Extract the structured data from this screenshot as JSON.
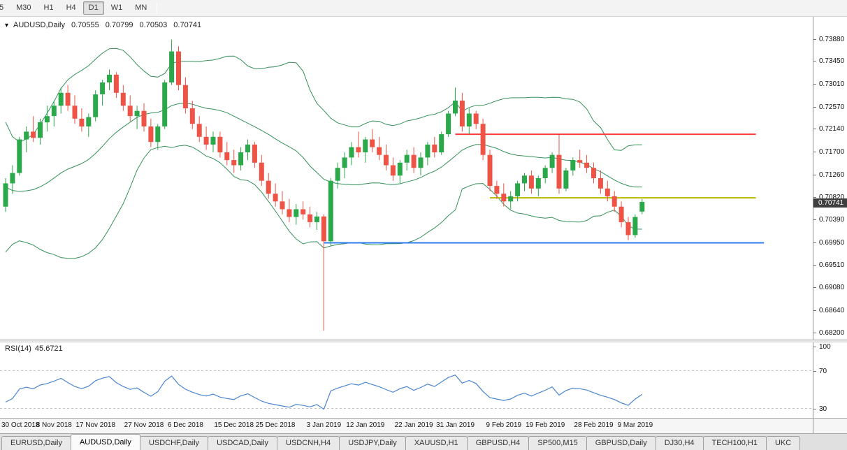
{
  "colors": {
    "bull": "#2aa84a",
    "bear": "#ee5345",
    "bollinger": "#35915a",
    "rsi_line": "#4a85d1",
    "rsi_level": "#c4c4c4",
    "badge_bg": "#3f3f3f",
    "red_line": "#fb3a3a",
    "yellow_line": "#b9ba00",
    "blue_line": "#2f7df0"
  },
  "toolbar": {
    "timeframes": [
      {
        "label": "5",
        "selected": false
      },
      {
        "label": "M30",
        "selected": false
      },
      {
        "label": "H1",
        "selected": false
      },
      {
        "label": "H4",
        "selected": false
      },
      {
        "label": "D1",
        "selected": true
      },
      {
        "label": "W1",
        "selected": false
      },
      {
        "label": "MN",
        "selected": false
      }
    ]
  },
  "chart": {
    "title": {
      "symbol": "AUDUSD,Daily",
      "open": "0.70555",
      "high": "0.70799",
      "low": "0.70503",
      "close": "0.70741"
    },
    "price_scale": {
      "labels": [
        "0.73880",
        "0.73450",
        "0.73010",
        "0.72570",
        "0.72140",
        "0.71700",
        "0.71260",
        "0.70820",
        "0.70390",
        "0.69950",
        "0.69510",
        "0.69080",
        "0.68640",
        "0.68200"
      ],
      "current": "0.70741"
    }
  },
  "rsi": {
    "label": "RSI(14)",
    "value": "45.6721",
    "scale_labels": [
      "100",
      "70",
      "30"
    ]
  },
  "tabs": [
    {
      "label": "EURUSD,Daily",
      "active": false
    },
    {
      "label": "AUDUSD,Daily",
      "active": true
    },
    {
      "label": "USDCHF,Daily",
      "active": false
    },
    {
      "label": "USDCAD,Daily",
      "active": false
    },
    {
      "label": "USDCNH,H4",
      "active": false
    },
    {
      "label": "USDJPY,Daily",
      "active": false
    },
    {
      "label": "XAUUSD,H1",
      "active": false
    },
    {
      "label": "GBPUSD,H4",
      "active": false
    },
    {
      "label": "SP500,M15",
      "active": false
    },
    {
      "label": "GBPUSD,Daily",
      "active": false
    },
    {
      "label": "DJ30,H4",
      "active": false
    },
    {
      "label": "TECH100,H1",
      "active": false
    },
    {
      "label": "UKC",
      "active": false
    }
  ],
  "chart_data": {
    "type": "candlestick",
    "symbol": "AUDUSD",
    "timeframe": "Daily",
    "ylim": [
      0.6808,
      0.7432
    ],
    "y_ticks": [
      "0.73880",
      "0.73450",
      "0.73010",
      "0.72570",
      "0.72140",
      "0.71700",
      "0.71260",
      "0.70820",
      "0.70390",
      "0.69950",
      "0.69510",
      "0.69080",
      "0.68640",
      "0.68200"
    ],
    "x_labels": [
      "30 Oct 2018",
      "8 Nov 2018",
      "17 Nov 2018",
      "27 Nov 2018",
      "6 Dec 2018",
      "15 Dec 2018",
      "25 Dec 2018",
      "3 Jan 2019",
      "12 Jan 2019",
      "22 Jan 2019",
      "31 Jan 2019",
      "9 Feb 2019",
      "19 Feb 2019",
      "28 Feb 2019",
      "9 Mar 2019"
    ],
    "x_label_indices": [
      0,
      7,
      13,
      20,
      26,
      33,
      39,
      46,
      52,
      59,
      65,
      72,
      78,
      85,
      91
    ],
    "x_start": 8,
    "x_step": 9.9,
    "ohlc": [
      [
        0.7065,
        0.712,
        0.7055,
        0.711
      ],
      [
        0.711,
        0.7145,
        0.709,
        0.713
      ],
      [
        0.713,
        0.72,
        0.7125,
        0.7195
      ],
      [
        0.7195,
        0.722,
        0.717,
        0.721
      ],
      [
        0.721,
        0.724,
        0.719,
        0.7198
      ],
      [
        0.7198,
        0.7235,
        0.7185,
        0.7228
      ],
      [
        0.7228,
        0.726,
        0.721,
        0.724
      ],
      [
        0.724,
        0.727,
        0.722,
        0.726
      ],
      [
        0.726,
        0.7295,
        0.7245,
        0.7285
      ],
      [
        0.7285,
        0.73,
        0.725,
        0.726
      ],
      [
        0.726,
        0.728,
        0.7225,
        0.7235
      ],
      [
        0.7235,
        0.7255,
        0.721,
        0.722
      ],
      [
        0.722,
        0.7245,
        0.72,
        0.7238
      ],
      [
        0.7238,
        0.729,
        0.723,
        0.7282
      ],
      [
        0.7282,
        0.731,
        0.726,
        0.7305
      ],
      [
        0.7305,
        0.733,
        0.729,
        0.732
      ],
      [
        0.732,
        0.7325,
        0.7275,
        0.7285
      ],
      [
        0.7285,
        0.73,
        0.725,
        0.726
      ],
      [
        0.726,
        0.728,
        0.723,
        0.724
      ],
      [
        0.724,
        0.726,
        0.7215,
        0.725
      ],
      [
        0.725,
        0.7265,
        0.721,
        0.722
      ],
      [
        0.722,
        0.7235,
        0.718,
        0.719
      ],
      [
        0.719,
        0.7225,
        0.7175,
        0.722
      ],
      [
        0.722,
        0.731,
        0.7215,
        0.7305
      ],
      [
        0.7305,
        0.7388,
        0.73,
        0.7365
      ],
      [
        0.7365,
        0.7375,
        0.729,
        0.73
      ],
      [
        0.73,
        0.7315,
        0.7245,
        0.7255
      ],
      [
        0.7255,
        0.727,
        0.7215,
        0.7225
      ],
      [
        0.7225,
        0.724,
        0.719,
        0.72
      ],
      [
        0.72,
        0.722,
        0.7175,
        0.7185
      ],
      [
        0.7185,
        0.721,
        0.717,
        0.72
      ],
      [
        0.72,
        0.721,
        0.716,
        0.717
      ],
      [
        0.717,
        0.719,
        0.7145,
        0.7155
      ],
      [
        0.7155,
        0.7175,
        0.713,
        0.7145
      ],
      [
        0.7145,
        0.718,
        0.7135,
        0.717
      ],
      [
        0.717,
        0.7195,
        0.7155,
        0.7185
      ],
      [
        0.7185,
        0.719,
        0.714,
        0.715
      ],
      [
        0.715,
        0.7165,
        0.7105,
        0.7115
      ],
      [
        0.7115,
        0.713,
        0.708,
        0.709
      ],
      [
        0.709,
        0.711,
        0.7065,
        0.7075
      ],
      [
        0.7075,
        0.7095,
        0.705,
        0.706
      ],
      [
        0.706,
        0.708,
        0.7035,
        0.7045
      ],
      [
        0.7045,
        0.707,
        0.703,
        0.706
      ],
      [
        0.706,
        0.7075,
        0.704,
        0.705
      ],
      [
        0.705,
        0.7065,
        0.7025,
        0.7035
      ],
      [
        0.7035,
        0.7055,
        0.702,
        0.7046
      ],
      [
        0.7046,
        0.705,
        0.6825,
        0.6998
      ],
      [
        0.6998,
        0.712,
        0.699,
        0.7115
      ],
      [
        0.7115,
        0.715,
        0.71,
        0.714
      ],
      [
        0.714,
        0.717,
        0.712,
        0.716
      ],
      [
        0.716,
        0.719,
        0.7145,
        0.718
      ],
      [
        0.718,
        0.721,
        0.716,
        0.717
      ],
      [
        0.717,
        0.72,
        0.715,
        0.7195
      ],
      [
        0.7195,
        0.7215,
        0.717,
        0.718
      ],
      [
        0.718,
        0.72,
        0.7155,
        0.7165
      ],
      [
        0.7165,
        0.7185,
        0.7135,
        0.7145
      ],
      [
        0.7145,
        0.716,
        0.7115,
        0.7125
      ],
      [
        0.7125,
        0.7155,
        0.711,
        0.715
      ],
      [
        0.715,
        0.7175,
        0.7135,
        0.7165
      ],
      [
        0.7165,
        0.718,
        0.713,
        0.714
      ],
      [
        0.714,
        0.717,
        0.7125,
        0.716
      ],
      [
        0.716,
        0.719,
        0.7145,
        0.7185
      ],
      [
        0.7185,
        0.72,
        0.716,
        0.717
      ],
      [
        0.717,
        0.721,
        0.7165,
        0.7205
      ],
      [
        0.7205,
        0.725,
        0.72,
        0.7245
      ],
      [
        0.7245,
        0.7295,
        0.724,
        0.727
      ],
      [
        0.727,
        0.7285,
        0.721,
        0.722
      ],
      [
        0.722,
        0.7255,
        0.7205,
        0.7245
      ],
      [
        0.7245,
        0.725,
        0.7215,
        0.7225
      ],
      [
        0.7225,
        0.7235,
        0.7155,
        0.7165
      ],
      [
        0.7165,
        0.7175,
        0.7095,
        0.7105
      ],
      [
        0.7105,
        0.7115,
        0.708,
        0.709
      ],
      [
        0.709,
        0.711,
        0.7065,
        0.7075
      ],
      [
        0.7075,
        0.7095,
        0.706,
        0.7085
      ],
      [
        0.7085,
        0.7115,
        0.7075,
        0.711
      ],
      [
        0.711,
        0.713,
        0.7095,
        0.7125
      ],
      [
        0.7125,
        0.7135,
        0.709,
        0.71
      ],
      [
        0.71,
        0.7125,
        0.7085,
        0.712
      ],
      [
        0.712,
        0.7145,
        0.711,
        0.714
      ],
      [
        0.714,
        0.717,
        0.713,
        0.7165
      ],
      [
        0.7165,
        0.7205,
        0.709,
        0.71
      ],
      [
        0.71,
        0.714,
        0.7095,
        0.7135
      ],
      [
        0.7135,
        0.716,
        0.7125,
        0.7155
      ],
      [
        0.7155,
        0.7175,
        0.714,
        0.715
      ],
      [
        0.715,
        0.7165,
        0.713,
        0.714
      ],
      [
        0.714,
        0.715,
        0.711,
        0.712
      ],
      [
        0.712,
        0.7135,
        0.709,
        0.71
      ],
      [
        0.71,
        0.7115,
        0.7075,
        0.7085
      ],
      [
        0.7085,
        0.7095,
        0.7055,
        0.7065
      ],
      [
        0.7065,
        0.7075,
        0.7025,
        0.7035
      ],
      [
        0.7035,
        0.7045,
        0.7,
        0.701
      ],
      [
        0.701,
        0.705,
        0.7005,
        0.7045
      ],
      [
        0.70555,
        0.70799,
        0.70503,
        0.70741
      ]
    ],
    "pre_closes": [
      0.729,
      0.726,
      0.723,
      0.719,
      0.715,
      0.712,
      0.709,
      0.707,
      0.709,
      0.711,
      0.713,
      0.711,
      0.708,
      0.705,
      0.703,
      0.702,
      0.704,
      0.706,
      0.705,
      0.7065
    ],
    "overlays": {
      "bollinger": {
        "period": 20,
        "deviations": 2
      },
      "hlines": [
        {
          "price": 0.7205,
          "color_key": "red_line",
          "from_index": 65,
          "to_frac": 0.93
        },
        {
          "price": 0.7082,
          "color_key": "yellow_line",
          "from_index": 70,
          "to_frac": 0.93
        },
        {
          "price": 0.6995,
          "color_key": "blue_line",
          "from_index": 46,
          "to_frac": 0.94
        }
      ]
    },
    "rsi": {
      "period": 14,
      "current": 45.6721,
      "levels": [
        70,
        30
      ],
      "ylim": [
        20,
        100
      ]
    }
  }
}
